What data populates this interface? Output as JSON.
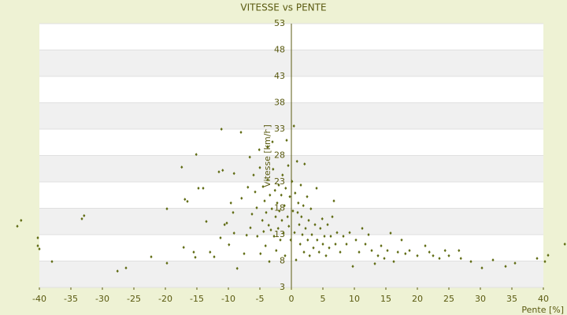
{
  "chart_data": {
    "type": "scatter",
    "title": "VITESSE vs PENTE",
    "x_label": "Pente [%]",
    "y_label": "Vitesse [km/h]",
    "xlim": [
      -40,
      40
    ],
    "xticks": [
      -40,
      -35,
      -30,
      -25,
      -20,
      -15,
      -10,
      -5,
      0,
      5,
      10,
      15,
      20,
      25,
      30,
      35,
      40
    ],
    "ylim": [
      3,
      53
    ],
    "yticks": [
      3,
      8,
      13,
      18,
      23,
      28,
      33,
      38,
      43,
      48,
      53
    ],
    "grid": true,
    "series": [
      {
        "name": "Vitesse",
        "color": "#5f6b12",
        "x": [
          -43.5,
          -42.9,
          -40.25,
          -40.25,
          -40,
          -38,
          -33.25,
          -32.9,
          -27.6,
          -26.25,
          -22.25,
          -19.75,
          -19.75,
          -17.4,
          -17.1,
          -16.9,
          -16.5,
          -15.5,
          -15.25,
          -15.1,
          -14.75,
          -14,
          -13.5,
          -12.9,
          -12.25,
          -11.5,
          -11.25,
          -11.1,
          -10.9,
          -10.6,
          -10.25,
          -9.9,
          -9.6,
          -9.25,
          -9.1,
          -9.1,
          -8.6,
          -8,
          -7.9,
          -7.5,
          -7.1,
          -6.9,
          -6.6,
          -6.5,
          -6.25,
          -6,
          -5.75,
          -5.5,
          -5.4,
          -5.1,
          -5,
          -4.9,
          -4.6,
          -4.5,
          -4.4,
          -4.25,
          -4.1,
          -4,
          -3.75,
          -3.75,
          -3.6,
          -3.5,
          -3.4,
          -3.25,
          -3.1,
          -3,
          -2.9,
          -2.75,
          -2.6,
          -2.5,
          -2.4,
          -2.25,
          -2.1,
          -2,
          -1.9,
          -1.75,
          -1.6,
          -1.5,
          -1.4,
          -1.25,
          -1.1,
          -1,
          -0.9,
          -0.75,
          -0.6,
          -0.5,
          -0.4,
          -0.25,
          -0.1,
          0.1,
          0.25,
          0.4,
          0.5,
          0.6,
          0.75,
          0.9,
          1,
          1.1,
          1.25,
          1.4,
          1.5,
          1.6,
          1.75,
          1.9,
          2,
          2.1,
          2.25,
          2.5,
          2.6,
          2.75,
          2.9,
          3.1,
          3.25,
          3.5,
          3.75,
          4,
          4.1,
          4.4,
          4.6,
          4.9,
          5,
          5.25,
          5.5,
          5.75,
          6,
          6.25,
          6.5,
          6.75,
          7,
          7.25,
          7.75,
          8.25,
          8.75,
          9.25,
          9.75,
          10.25,
          10.75,
          11.25,
          11.75,
          12.25,
          12.75,
          13.25,
          13.75,
          14.25,
          14.75,
          15.25,
          15.75,
          16.25,
          16.9,
          17.5,
          18.1,
          18.75,
          20,
          21.25,
          21.9,
          22.5,
          23.5,
          24.4,
          25,
          26.6,
          26.9,
          28.5,
          30.25,
          32,
          34,
          35.5,
          39,
          40.25,
          40.75,
          43.4
        ],
        "values": [
          14.6,
          15.7,
          12.4,
          10.9,
          10.3,
          7.9,
          16,
          16.6,
          6.1,
          6.7,
          8.8,
          7.6,
          17.9,
          25.8,
          10.6,
          19.7,
          19.3,
          9.7,
          8.7,
          28.2,
          21.8,
          21.8,
          15.5,
          9.7,
          8.8,
          24.9,
          12.4,
          33,
          25.2,
          14.9,
          15.2,
          11.1,
          19,
          17.2,
          24.6,
          13.3,
          6.6,
          32.4,
          19.9,
          9.4,
          12.9,
          22,
          27.7,
          14.3,
          16.9,
          24.3,
          21.1,
          18.1,
          12.7,
          29.1,
          25.7,
          9.4,
          15.7,
          22.1,
          13.6,
          19.4,
          10.9,
          17.2,
          29.7,
          23.4,
          14.8,
          7.9,
          20.5,
          13.9,
          17.9,
          30.6,
          25.4,
          12.7,
          21.4,
          16.4,
          10,
          19,
          14.2,
          22.4,
          17.5,
          12,
          20.5,
          15.7,
          24.3,
          13.3,
          18.5,
          9,
          21.8,
          30.9,
          16.4,
          26.1,
          14.6,
          20.2,
          12,
          23.1,
          17.5,
          33.6,
          13.4,
          20.9,
          8.2,
          26.9,
          17.2,
          19,
          14.9,
          11.2,
          22.4,
          16.4,
          13,
          18.5,
          9.7,
          26.4,
          14.2,
          20.2,
          12,
          15.7,
          9,
          17.9,
          13,
          10.5,
          14.9,
          21.8,
          12,
          9.7,
          14.2,
          16,
          11.2,
          12.7,
          9,
          14.9,
          10.5,
          12.7,
          16.4,
          19.4,
          11.2,
          13.4,
          9.7,
          12.7,
          11.2,
          13.4,
          7,
          12,
          9.7,
          14.2,
          11.2,
          13,
          10,
          7.5,
          9,
          10.9,
          8.5,
          10,
          13.3,
          7.9,
          9.7,
          12,
          9.4,
          10,
          9,
          10.9,
          9.7,
          9,
          8.5,
          10,
          9,
          10,
          8.5,
          7.9,
          6.7,
          8.2,
          7,
          7.6,
          8.5,
          7.9,
          9.1,
          11.2
        ]
      }
    ]
  }
}
